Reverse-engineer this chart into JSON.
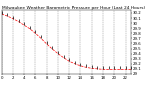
{
  "title": "Milwaukee Weather Barometric Pressure per Hour (Last 24 Hours)",
  "x_values": [
    0,
    1,
    2,
    3,
    4,
    5,
    6,
    7,
    8,
    9,
    10,
    11,
    12,
    13,
    14,
    15,
    16,
    17,
    18,
    19,
    20,
    21,
    22,
    23
  ],
  "y_values": [
    30.18,
    30.14,
    30.09,
    30.03,
    29.96,
    29.89,
    29.8,
    29.7,
    29.59,
    29.49,
    29.4,
    29.32,
    29.25,
    29.2,
    29.16,
    29.13,
    29.11,
    29.1,
    29.09,
    29.09,
    29.09,
    29.09,
    29.09,
    29.09
  ],
  "line_color": "#ff0000",
  "marker_color": "#000000",
  "bg_color": "#ffffff",
  "grid_color": "#808080",
  "title_fontsize": 3.2,
  "tick_fontsize": 2.8,
  "ylim_min": 29.0,
  "ylim_max": 30.25,
  "xlim_min": 0,
  "xlim_max": 23,
  "x_ticks": [
    0,
    2,
    4,
    6,
    8,
    10,
    12,
    14,
    16,
    18,
    20,
    22
  ],
  "x_tick_labels": [
    "0",
    "2",
    "4",
    "6",
    "8",
    "10",
    "12",
    "14",
    "16",
    "18",
    "20",
    "22"
  ],
  "y_ticks": [
    29.0,
    29.1,
    29.2,
    29.3,
    29.4,
    29.5,
    29.6,
    29.7,
    29.8,
    29.9,
    30.0,
    30.1,
    30.2
  ],
  "y_tick_labels": [
    "29",
    "29.1",
    "29.2",
    "29.3",
    "29.4",
    "29.5",
    "29.6",
    "29.7",
    "29.8",
    "29.9",
    "30",
    "30.1",
    "30.2"
  ]
}
